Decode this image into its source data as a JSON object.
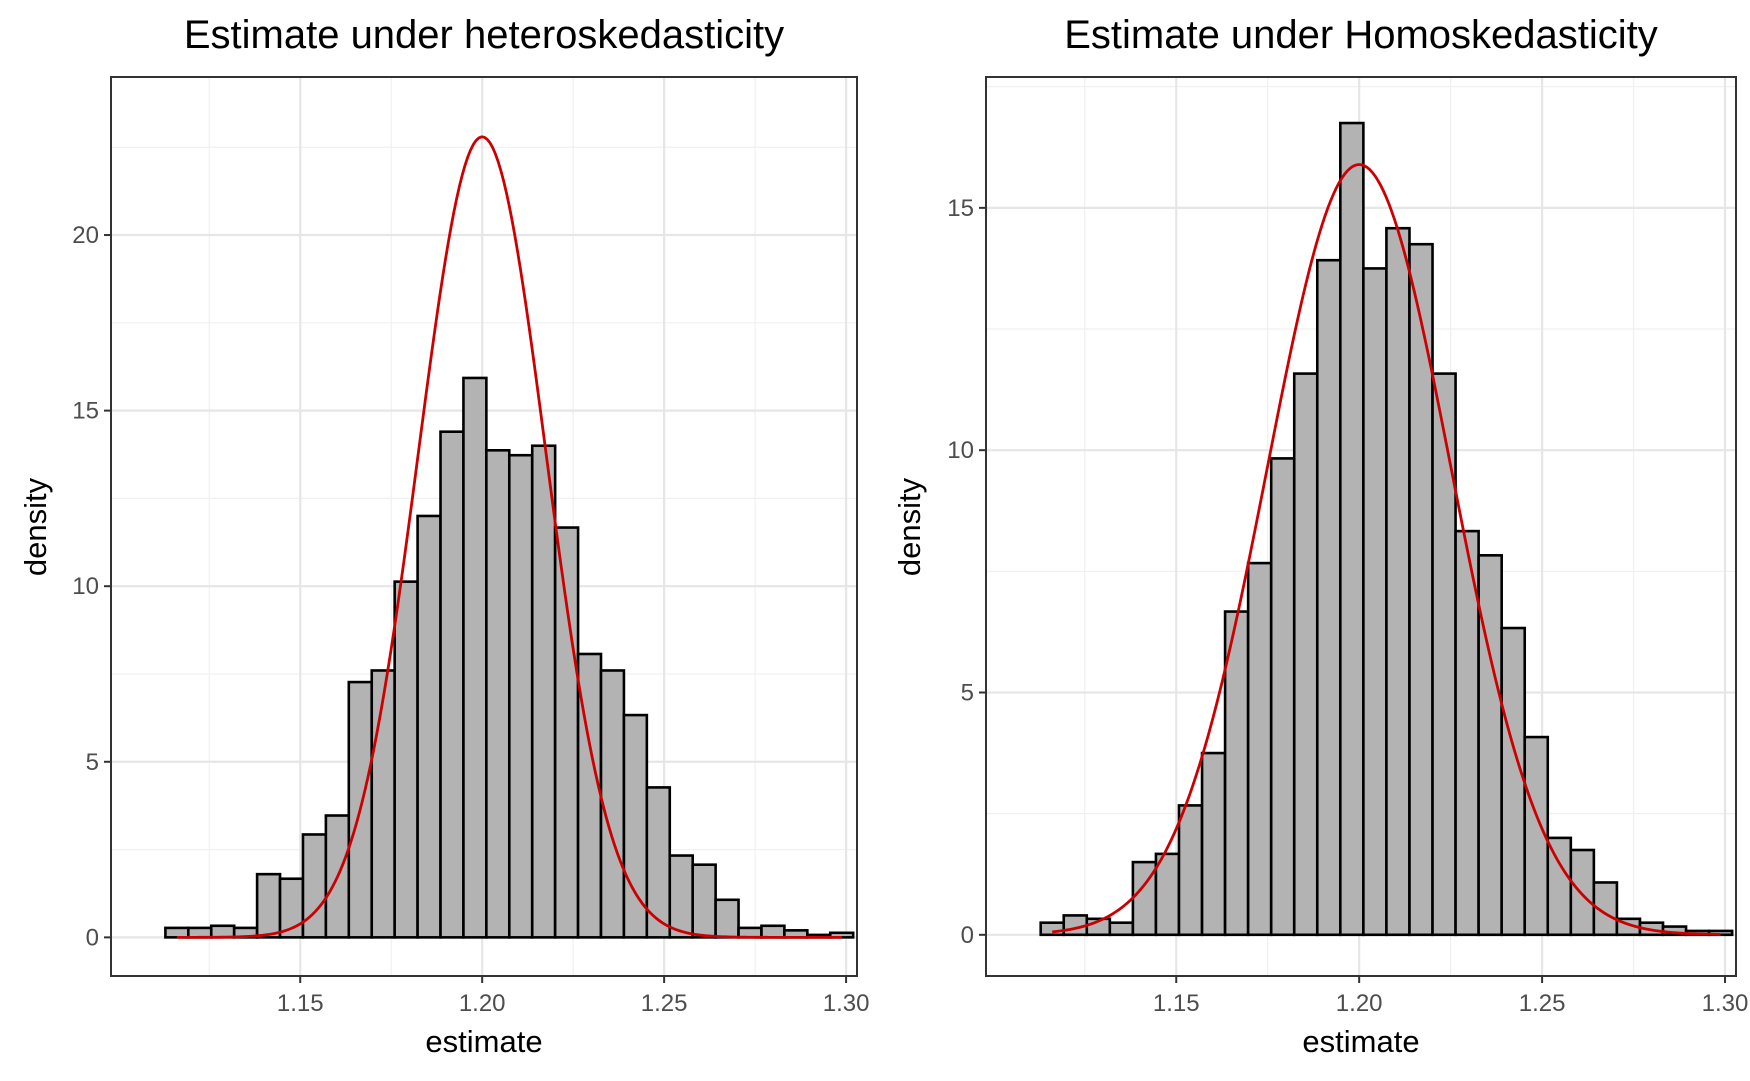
{
  "chart_data": [
    {
      "type": "bar",
      "title": "Estimate under heteroskedasticity",
      "xlabel": "estimate",
      "ylabel": "density",
      "xlim": [
        1.098,
        1.303
      ],
      "ylim": [
        -1.1,
        24.5
      ],
      "x_ticks": [
        1.15,
        1.2,
        1.25,
        1.3
      ],
      "x_tick_labels": [
        "1.15",
        "1.20",
        "1.25",
        "1.30"
      ],
      "y_ticks": [
        0,
        5,
        10,
        15,
        20
      ],
      "y_tick_labels": [
        "0",
        "5",
        "10",
        "15",
        "20"
      ],
      "grid": true,
      "bin_width": 0.0063,
      "bins": [
        {
          "x": 1.1161,
          "density": 0.27
        },
        {
          "x": 1.1224,
          "density": 0.27
        },
        {
          "x": 1.1287,
          "density": 0.33
        },
        {
          "x": 1.135,
          "density": 0.27
        },
        {
          "x": 1.1413,
          "density": 1.8
        },
        {
          "x": 1.1476,
          "density": 1.67
        },
        {
          "x": 1.1539,
          "density": 2.93
        },
        {
          "x": 1.1602,
          "density": 3.47
        },
        {
          "x": 1.1665,
          "density": 7.27
        },
        {
          "x": 1.1728,
          "density": 7.6
        },
        {
          "x": 1.1791,
          "density": 10.13
        },
        {
          "x": 1.1854,
          "density": 12.0
        },
        {
          "x": 1.1917,
          "density": 14.4
        },
        {
          "x": 1.198,
          "density": 15.93
        },
        {
          "x": 1.2043,
          "density": 13.87
        },
        {
          "x": 1.2106,
          "density": 13.73
        },
        {
          "x": 1.2169,
          "density": 14.0
        },
        {
          "x": 1.2232,
          "density": 11.67
        },
        {
          "x": 1.2295,
          "density": 8.07
        },
        {
          "x": 1.2358,
          "density": 7.6
        },
        {
          "x": 1.2421,
          "density": 6.33
        },
        {
          "x": 1.2484,
          "density": 4.27
        },
        {
          "x": 1.2547,
          "density": 2.33
        },
        {
          "x": 1.261,
          "density": 2.07
        },
        {
          "x": 1.2673,
          "density": 1.07
        },
        {
          "x": 1.2736,
          "density": 0.27
        },
        {
          "x": 1.2799,
          "density": 0.33
        },
        {
          "x": 1.2862,
          "density": 0.2
        },
        {
          "x": 1.2925,
          "density": 0.07
        },
        {
          "x": 1.2988,
          "density": 0.13
        }
      ],
      "curve": {
        "type": "normal",
        "mean": 1.2,
        "sd": 0.0175,
        "x_range": [
          1.1161,
          1.2988
        ],
        "color": "#cc0000"
      },
      "bar_fill": "#b3b3b3",
      "bar_stroke": "#000000"
    },
    {
      "type": "bar",
      "title": "Estimate under Homoskedasticity",
      "xlabel": "estimate",
      "ylabel": "density",
      "xlim": [
        1.098,
        1.303
      ],
      "ylim": [
        -0.85,
        17.7
      ],
      "x_ticks": [
        1.15,
        1.2,
        1.25,
        1.3
      ],
      "x_tick_labels": [
        "1.15",
        "1.20",
        "1.25",
        "1.30"
      ],
      "y_ticks": [
        0,
        5,
        10,
        15
      ],
      "y_tick_labels": [
        "0",
        "5",
        "10",
        "15"
      ],
      "grid": true,
      "bin_width": 0.0063,
      "bins": [
        {
          "x": 1.1161,
          "density": 0.25
        },
        {
          "x": 1.1224,
          "density": 0.4
        },
        {
          "x": 1.1287,
          "density": 0.33
        },
        {
          "x": 1.135,
          "density": 0.25
        },
        {
          "x": 1.1413,
          "density": 1.5
        },
        {
          "x": 1.1476,
          "density": 1.67
        },
        {
          "x": 1.1539,
          "density": 2.67
        },
        {
          "x": 1.1602,
          "density": 3.75
        },
        {
          "x": 1.1665,
          "density": 6.67
        },
        {
          "x": 1.1728,
          "density": 7.67
        },
        {
          "x": 1.1791,
          "density": 9.83
        },
        {
          "x": 1.1854,
          "density": 11.58
        },
        {
          "x": 1.1917,
          "density": 13.92
        },
        {
          "x": 1.198,
          "density": 16.75
        },
        {
          "x": 1.2043,
          "density": 13.75
        },
        {
          "x": 1.2106,
          "density": 14.58
        },
        {
          "x": 1.2169,
          "density": 14.25
        },
        {
          "x": 1.2232,
          "density": 11.58
        },
        {
          "x": 1.2295,
          "density": 8.33
        },
        {
          "x": 1.2358,
          "density": 7.83
        },
        {
          "x": 1.2421,
          "density": 6.33
        },
        {
          "x": 1.2484,
          "density": 4.08
        },
        {
          "x": 1.2547,
          "density": 2.0
        },
        {
          "x": 1.261,
          "density": 1.75
        },
        {
          "x": 1.2673,
          "density": 1.08
        },
        {
          "x": 1.2736,
          "density": 0.33
        },
        {
          "x": 1.2799,
          "density": 0.25
        },
        {
          "x": 1.2862,
          "density": 0.17
        },
        {
          "x": 1.2925,
          "density": 0.08
        },
        {
          "x": 1.2988,
          "density": 0.08
        }
      ],
      "curve": {
        "type": "normal",
        "mean": 1.2,
        "sd": 0.0251,
        "x_range": [
          1.1161,
          1.2988
        ],
        "color": "#cc0000"
      },
      "bar_fill": "#b3b3b3",
      "bar_stroke": "#000000"
    }
  ]
}
